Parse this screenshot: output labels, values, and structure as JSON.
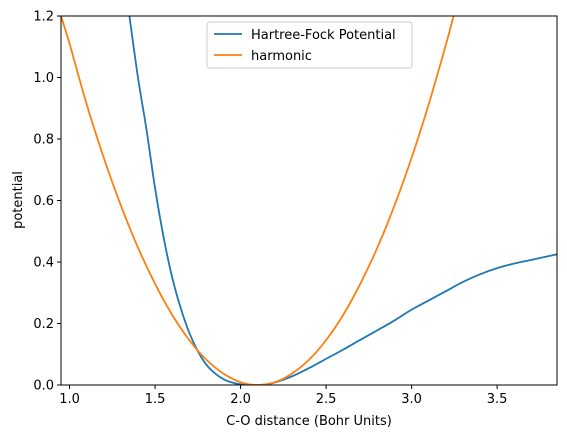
{
  "chart_data": {
    "type": "line",
    "xlabel": "C-O distance (Bohr Units)",
    "ylabel": "potential",
    "xlim": [
      0.95,
      3.85
    ],
    "ylim": [
      0,
      1.2
    ],
    "xticks": [
      1.0,
      1.5,
      2.0,
      2.5,
      3.0,
      3.5
    ],
    "xtick_labels": [
      "1.0",
      "1.5",
      "2.0",
      "2.5",
      "3.0",
      "3.5"
    ],
    "yticks": [
      0.0,
      0.2,
      0.4,
      0.6,
      0.8,
      1.0,
      1.2
    ],
    "ytick_labels": [
      "0.0",
      "0.2",
      "0.4",
      "0.6",
      "0.8",
      "1.0",
      "1.2"
    ],
    "grid": false,
    "legend_position": "upper-center",
    "series": [
      {
        "name": "Hartree-Fock Potential",
        "color": "#1f77b4",
        "x": [
          1.35,
          1.4,
          1.45,
          1.5,
          1.55,
          1.6,
          1.65,
          1.7,
          1.75,
          1.8,
          1.85,
          1.9,
          1.95,
          2.0,
          2.05,
          2.1,
          2.15,
          2.2,
          2.3,
          2.4,
          2.5,
          2.6,
          2.7,
          2.8,
          2.9,
          3.0,
          3.1,
          3.2,
          3.3,
          3.4,
          3.5,
          3.6,
          3.7,
          3.85
        ],
        "y": [
          1.2,
          1.0,
          0.83,
          0.64,
          0.48,
          0.35,
          0.25,
          0.17,
          0.11,
          0.066,
          0.038,
          0.019,
          0.008,
          0.002,
          0.0,
          0.0,
          0.002,
          0.008,
          0.028,
          0.055,
          0.085,
          0.115,
          0.147,
          0.178,
          0.21,
          0.245,
          0.275,
          0.305,
          0.335,
          0.36,
          0.38,
          0.395,
          0.407,
          0.425
        ]
      },
      {
        "name": "harmonic",
        "color": "#ff7f0e",
        "x": [
          0.95,
          1.0,
          1.1,
          1.2,
          1.3,
          1.4,
          1.5,
          1.6,
          1.7,
          1.8,
          1.9,
          2.0,
          2.1,
          2.2,
          2.3,
          2.4,
          2.5,
          2.6,
          2.7,
          2.8,
          2.9,
          3.0,
          3.1,
          3.2,
          3.25
        ],
        "y": [
          1.2,
          1.11,
          0.913,
          0.739,
          0.584,
          0.447,
          0.329,
          0.228,
          0.146,
          0.082,
          0.037,
          0.009,
          0.0,
          0.009,
          0.037,
          0.082,
          0.146,
          0.228,
          0.329,
          0.447,
          0.584,
          0.739,
          0.913,
          1.106,
          1.21
        ]
      }
    ]
  }
}
